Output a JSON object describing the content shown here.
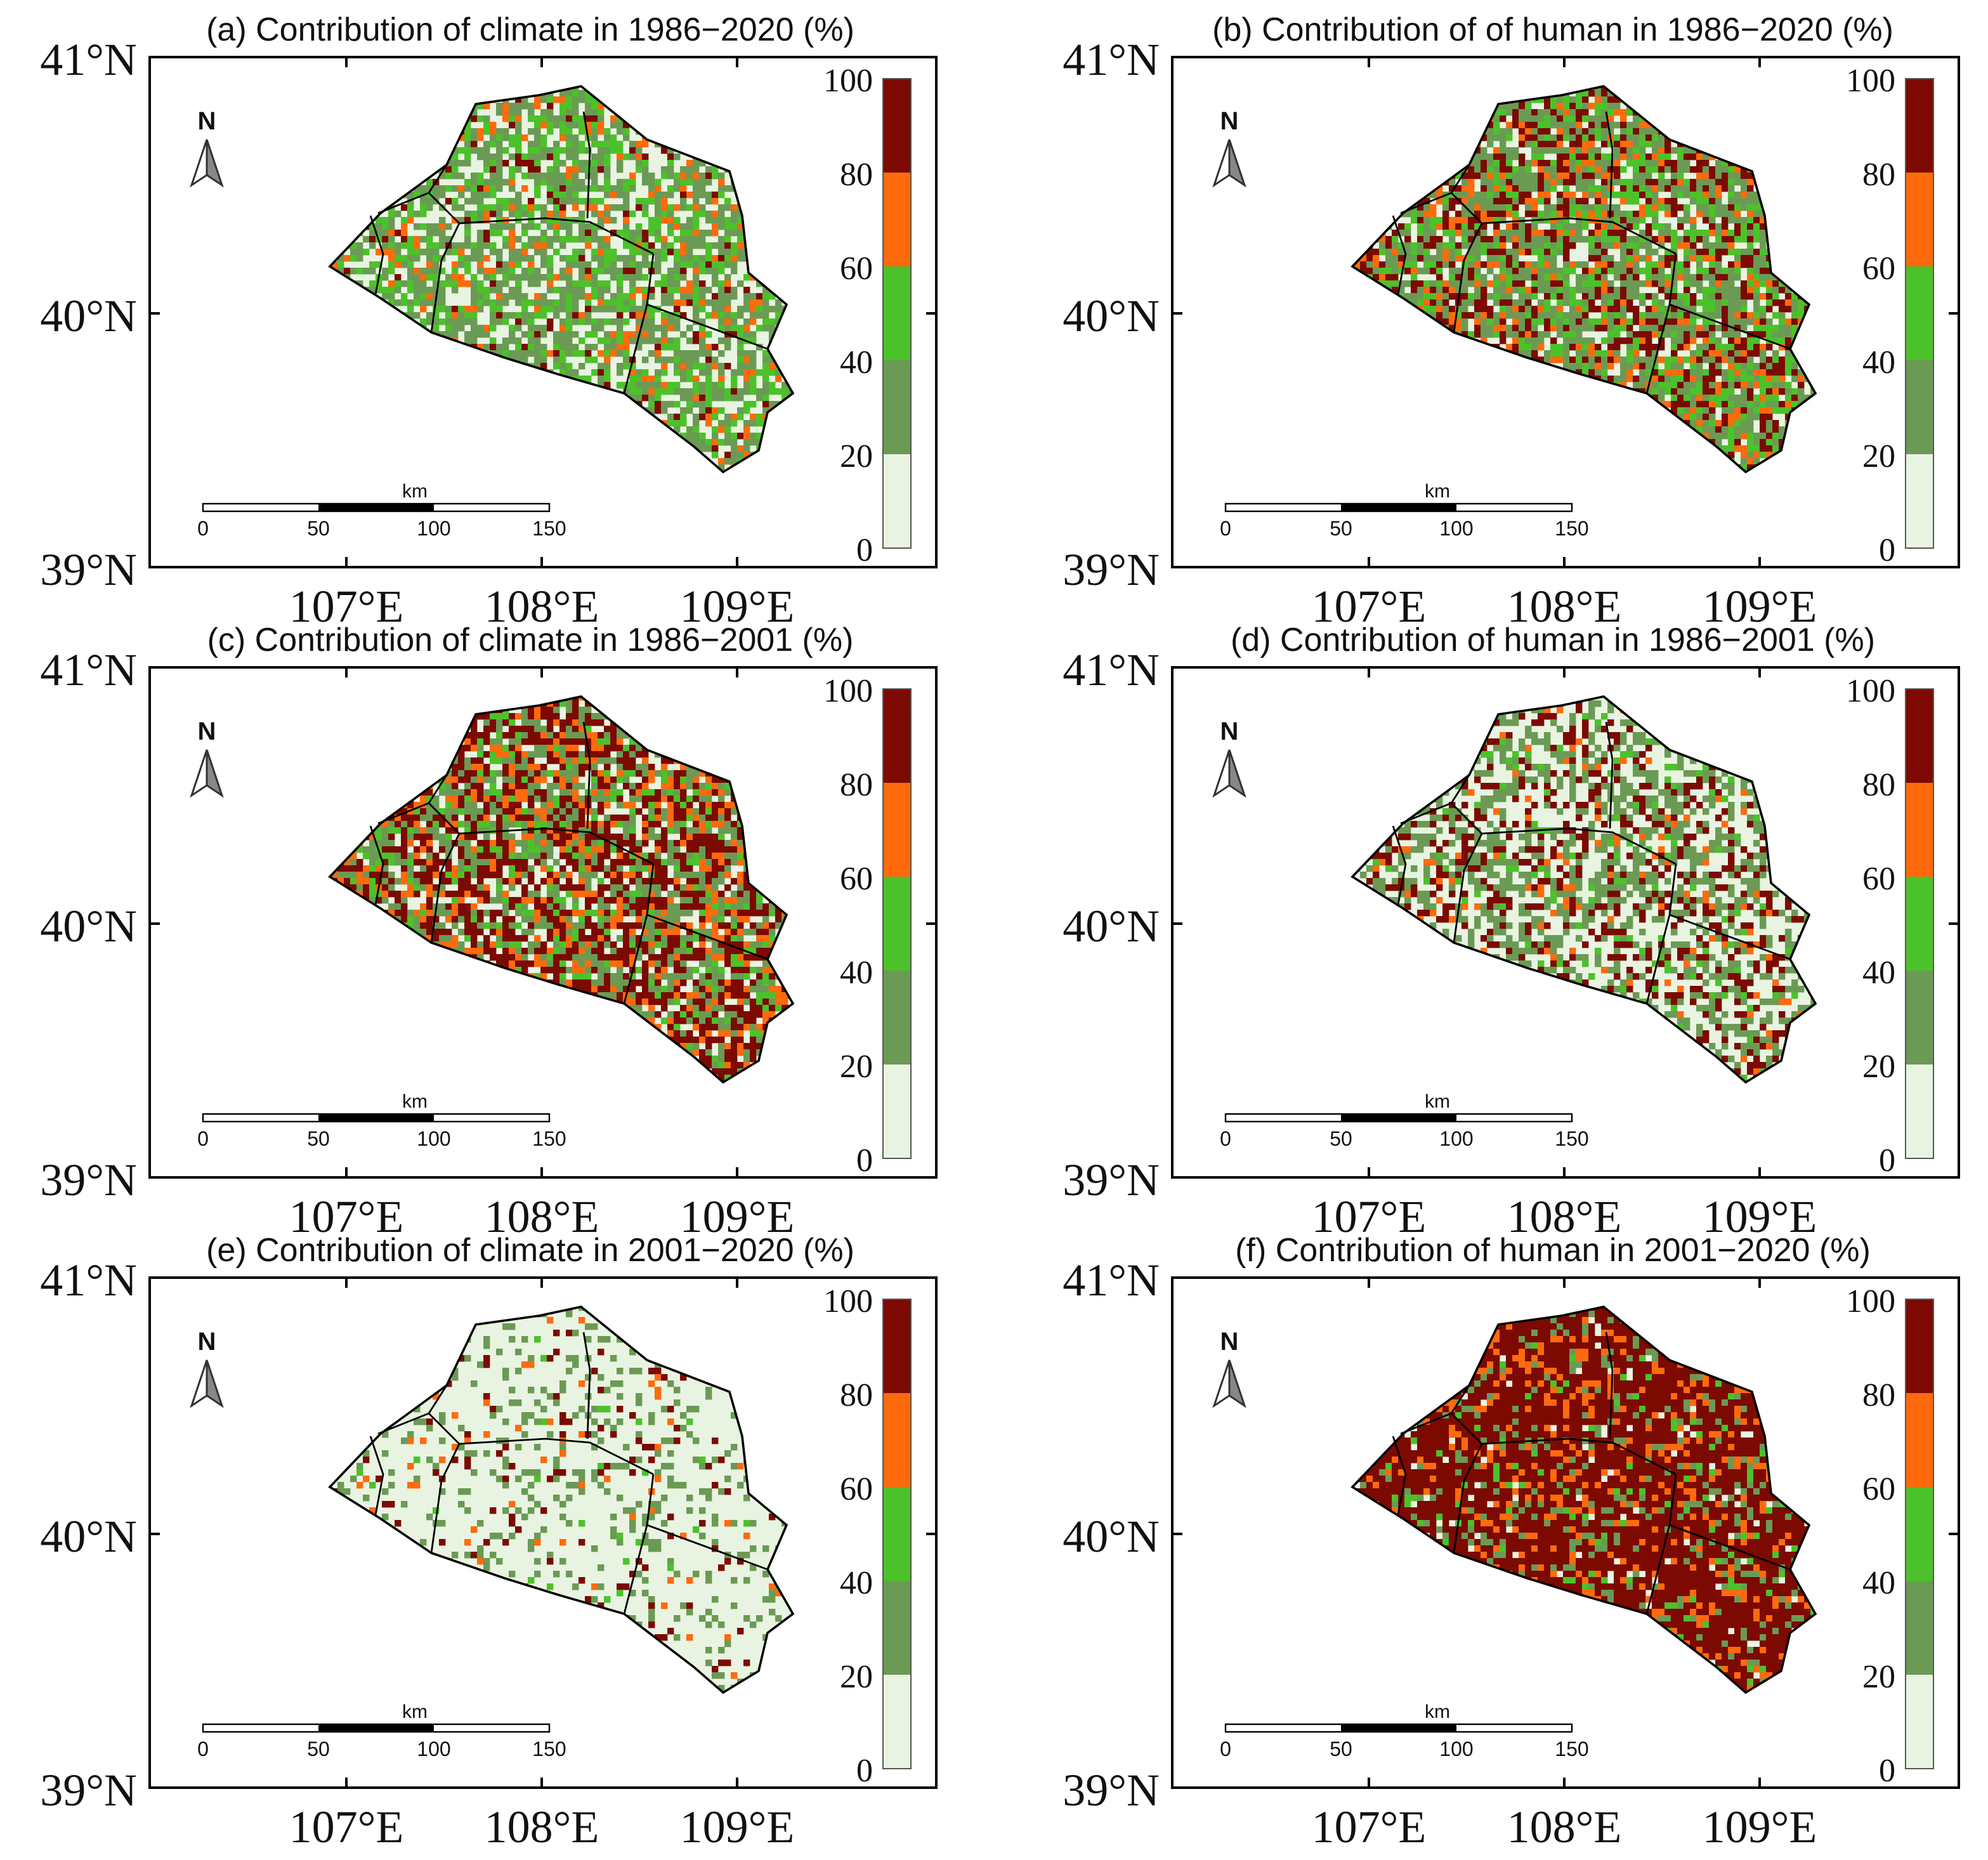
{
  "figure": {
    "panels": [
      {
        "id": "a",
        "title": "(a) Contribution of climate in 1986−2020 (%)",
        "scheme": "climate_all"
      },
      {
        "id": "b",
        "title": "(b) Contribution of of human in 1986−2020 (%)",
        "scheme": "human_all"
      },
      {
        "id": "c",
        "title": "(c) Contribution of climate in 1986−2001 (%)",
        "scheme": "climate_early"
      },
      {
        "id": "d",
        "title": "(d) Contribution of human in 1986−2001 (%)",
        "scheme": "human_early"
      },
      {
        "id": "e",
        "title": "(e) Contribution of climate in 2001−2020 (%)",
        "scheme": "climate_late"
      },
      {
        "id": "f",
        "title": "(f) Contribution of human in 2001−2020 (%)",
        "scheme": "human_late"
      }
    ],
    "lat_labels": [
      "41°N",
      "40°N",
      "39°N"
    ],
    "lon_labels": [
      "107°E",
      "108°E",
      "109°E"
    ],
    "colorbar": {
      "ticks": [
        "100",
        "80",
        "60",
        "40",
        "20",
        "0"
      ],
      "colors": [
        "#e8f4e1",
        "#6b9a55",
        "#4cc22a",
        "#ff6a0d",
        "#7c0a02"
      ]
    },
    "scalebar": {
      "unit": "km",
      "ticks": [
        "0",
        "50",
        "100",
        "150"
      ]
    },
    "north_arrow": "N",
    "class_weights": {
      "climate_all": [
        0.28,
        0.36,
        0.2,
        0.1,
        0.06
      ],
      "human_all": [
        0.12,
        0.34,
        0.2,
        0.12,
        0.22
      ],
      "climate_early": [
        0.14,
        0.24,
        0.1,
        0.16,
        0.36
      ],
      "human_early": [
        0.46,
        0.28,
        0.04,
        0.04,
        0.18
      ],
      "climate_late": [
        0.8,
        0.13,
        0.01,
        0.02,
        0.04
      ],
      "human_late": [
        0.04,
        0.1,
        0.04,
        0.14,
        0.68
      ]
    }
  }
}
